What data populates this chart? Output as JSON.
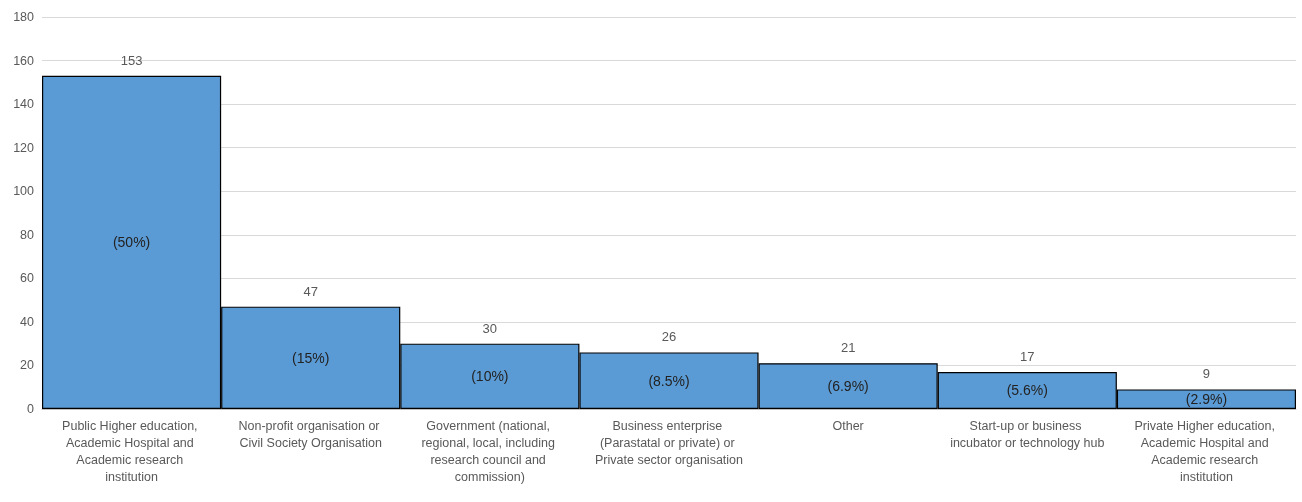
{
  "chart_data": {
    "type": "bar",
    "categories": [
      "Public Higher education, Academic Hospital and Academic research institution",
      "Non-profit organisation or Civil Society Organisation",
      "Government (national, regional, local, including research council and commission)",
      "Business enterprise (Parastatal or private) or Private sector organisation",
      "Other",
      "Start-up or business incubator or technology hub",
      "Private Higher education, Academic Hospital and Academic research institution"
    ],
    "values": [
      153,
      47,
      30,
      26,
      21,
      17,
      9
    ],
    "color": "#5b9bd5",
    "ylim": [
      0,
      180
    ],
    "yticks": [
      0,
      20,
      40,
      60,
      80,
      100,
      120,
      140,
      160,
      180
    ],
    "grid": "y",
    "data_labels": true,
    "annotations": [
      "(50%)",
      "(15%)",
      "(10%)",
      "(8.5%)",
      "(6.9%)",
      "(5.6%)",
      "(2.9%)"
    ]
  }
}
